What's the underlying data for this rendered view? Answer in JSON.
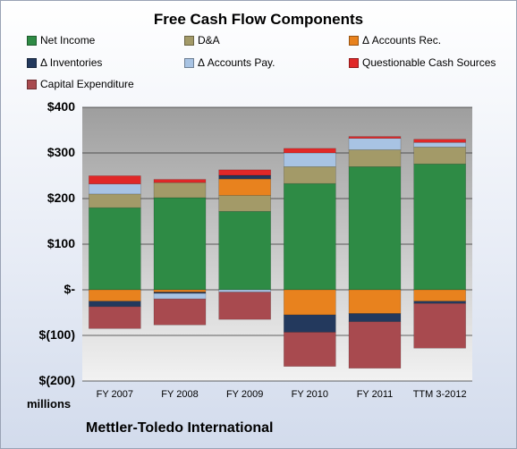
{
  "chart_data": {
    "type": "bar",
    "stacked": true,
    "title": "Free Cash Flow Components",
    "unit_label": "millions",
    "company": "Mettler-Toledo International",
    "categories": [
      "FY 2007",
      "FY 2008",
      "FY 2009",
      "FY 2010",
      "FY 2011",
      "TTM 3-2012"
    ],
    "ylim": [
      -200,
      400
    ],
    "yticks": [
      -200,
      -100,
      0,
      100,
      200,
      300,
      400
    ],
    "ytick_labels": [
      "$(200)",
      "$(100)",
      "$-",
      "$100",
      "$200",
      "$300",
      "$400"
    ],
    "grid": true,
    "legend_position": "top",
    "series": [
      {
        "name": "Net Income",
        "color": "#2e8b45",
        "values": [
          180,
          202,
          172,
          233,
          270,
          276
        ]
      },
      {
        "name": "D&A",
        "color": "#a39a68",
        "values": [
          30,
          33,
          35,
          37,
          37,
          37
        ]
      },
      {
        "name": "Δ Accounts Rec.",
        "color": "#e8821e",
        "values": [
          -25,
          -5,
          36,
          -55,
          -52,
          -25
        ]
      },
      {
        "name": "Δ Inventories",
        "color": "#23395d",
        "values": [
          -12,
          -3,
          8,
          -38,
          -18,
          -5
        ]
      },
      {
        "name": "Δ Accounts Pay.",
        "color": "#a8c3e3",
        "values": [
          22,
          -12,
          -5,
          30,
          25,
          10
        ]
      },
      {
        "name": "Questionable Cash Sources",
        "color": "#e02828",
        "values": [
          18,
          7,
          12,
          10,
          4,
          7
        ]
      },
      {
        "name": "Capital Expenditure",
        "color": "#a84a4f",
        "values": [
          -48,
          -57,
          -60,
          -75,
          -102,
          -98
        ]
      }
    ]
  }
}
